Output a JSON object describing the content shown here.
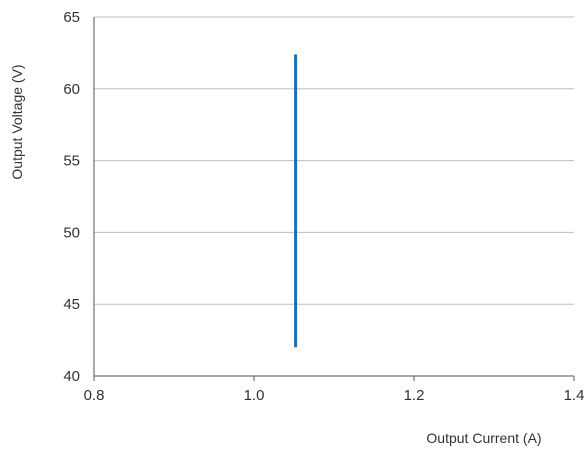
{
  "chart_data": {
    "type": "line",
    "title": "",
    "xlabel": "Output Current (A)",
    "ylabel": "Output Voltage (V)",
    "xlim": [
      0.8,
      1.4
    ],
    "ylim": [
      40,
      65
    ],
    "x_ticks": [
      0.8,
      1.0,
      1.2,
      1.4
    ],
    "x_tick_labels": [
      "0.8",
      "1.0",
      "1.2",
      "1.4"
    ],
    "y_ticks": [
      40,
      45,
      50,
      55,
      60,
      65
    ],
    "y_tick_labels": [
      "40",
      "45",
      "50",
      "55",
      "60",
      "65"
    ],
    "grid": "horizontal",
    "series": [
      {
        "color": "#1f6fb0",
        "x": [
          1.052,
          1.052
        ],
        "y": [
          42.0,
          62.4
        ]
      }
    ]
  }
}
